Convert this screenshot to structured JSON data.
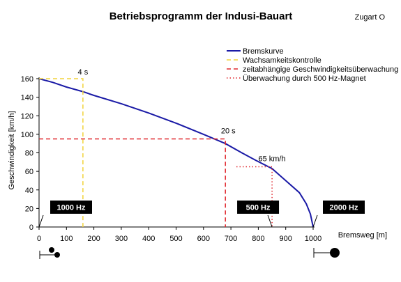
{
  "chart_data": {
    "type": "line",
    "title": "Betriebsprogramm der Indusi-Bauart",
    "subtitle": "Zugart O",
    "xlabel": "Bremsweg [m]",
    "ylabel": "Geschwindigkeit [km/h]",
    "xlim": [
      0,
      1000
    ],
    "ylim": [
      0,
      160
    ],
    "xticks": [
      0,
      100,
      200,
      300,
      400,
      500,
      600,
      700,
      800,
      900,
      1000
    ],
    "yticks": [
      0,
      20,
      40,
      60,
      80,
      100,
      120,
      140,
      160
    ],
    "grid": false,
    "legend_position": "top-right",
    "series": [
      {
        "name": "Bremskurve",
        "color": "#1a1aa6",
        "style": "solid",
        "x": [
          0,
          50,
          100,
          160,
          200,
          300,
          400,
          500,
          600,
          680,
          740,
          790,
          850,
          900,
          950,
          975,
          990,
          1000
        ],
        "y": [
          160,
          156,
          151,
          146,
          142,
          133,
          123,
          112,
          100,
          90,
          80,
          72,
          63,
          50,
          37,
          25,
          14,
          0
        ]
      },
      {
        "name": "Wachsamkeitskontrolle",
        "color": "#f2d43a",
        "style": "dashed",
        "x": [
          0,
          160,
          160
        ],
        "y": [
          160,
          160,
          0
        ]
      },
      {
        "name": "zeitabhängige Geschwindigkeitsüberwachung",
        "color": "#e0282e",
        "style": "dashed",
        "x": [
          0,
          680,
          680
        ],
        "y": [
          95,
          95,
          0
        ]
      },
      {
        "name": "Überwachung durch 500 Hz-Magnet",
        "color": "#e0282e",
        "style": "dotted",
        "x": [
          720,
          850,
          850
        ],
        "y": [
          65,
          65,
          0
        ]
      }
    ],
    "annotations": [
      {
        "text": "4 s",
        "x": 160,
        "y": 160
      },
      {
        "text": "20 s",
        "x": 680,
        "y": 95
      },
      {
        "text": "65 km/h",
        "x": 850,
        "y": 65
      }
    ],
    "markers": [
      {
        "text": "1000 Hz",
        "x": 0
      },
      {
        "text": "500 Hz",
        "x": 850
      },
      {
        "text": "2000 Hz",
        "x": 1000
      }
    ]
  }
}
